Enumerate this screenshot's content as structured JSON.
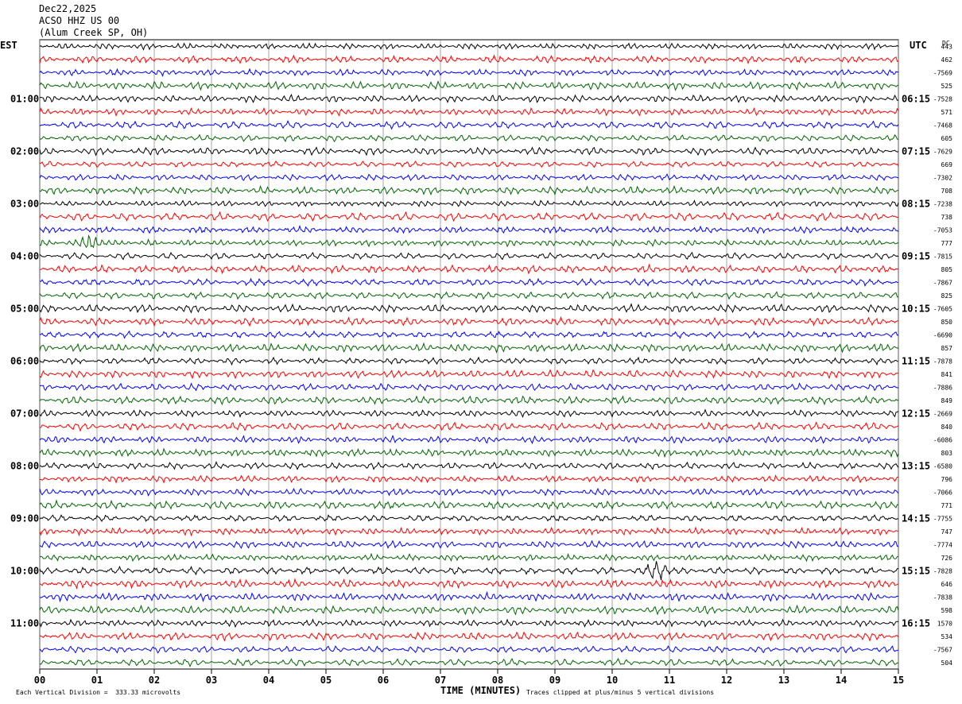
{
  "header": {
    "date": "Dec22,2025",
    "station": "ACSO HHZ US 00",
    "location": "(Alum Creek SP, OH)"
  },
  "left_tz": "EST",
  "right_tz": "UTC",
  "dc_label": "DC",
  "footer": {
    "scale": "Each Vertical Division =  333.33 microvolts",
    "clip": "Traces clipped at plus/minus 5 vertical divisions"
  },
  "chart_data": {
    "type": "line",
    "title": "",
    "xlabel": "TIME (MINUTES)",
    "xlim": [
      0,
      15
    ],
    "x_ticks": [
      "00",
      "01",
      "02",
      "03",
      "04",
      "05",
      "06",
      "07",
      "08",
      "09",
      "10",
      "11",
      "12",
      "13",
      "14",
      "15"
    ],
    "trace_colors": [
      "#000000",
      "#ff0000",
      "#0000ff",
      "#006400"
    ],
    "left_hour_labels": [
      "01:00",
      "02:00",
      "03:00",
      "04:00",
      "05:00",
      "06:00",
      "07:00",
      "08:00",
      "09:00",
      "10:00",
      "11:00"
    ],
    "right_hour_labels": [
      "06:15",
      "07:15",
      "08:15",
      "09:15",
      "10:15",
      "11:15",
      "12:15",
      "13:15",
      "14:15",
      "15:15",
      "16:15"
    ],
    "dc_offsets": [
      "443",
      "462",
      "-7569",
      "525",
      "-7528",
      "571",
      "-7468",
      "605",
      "-7629",
      "669",
      "-7302",
      "708",
      "-7238",
      "738",
      "-7053",
      "777",
      "-7815",
      "805",
      "-7867",
      "825",
      "-7605",
      "850",
      "-6690",
      "857",
      "-7878",
      "841",
      "-7886",
      "849",
      "-2669",
      "840",
      "-6086",
      "803",
      "-6580",
      "796",
      "-7066",
      "771",
      "-7755",
      "747",
      "-7774",
      "726",
      "-7828",
      "646",
      "-7838",
      "598",
      "1570",
      "534",
      "-7567",
      "504"
    ],
    "events": [
      {
        "trace": 15,
        "minute": 0.9,
        "note": "burst"
      },
      {
        "trace": 40,
        "minute": 10.8,
        "note": "spike"
      }
    ]
  }
}
